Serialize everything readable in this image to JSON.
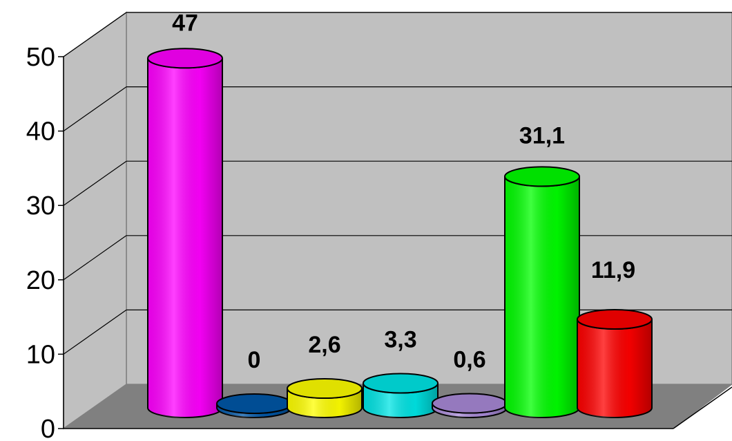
{
  "chart_data": {
    "type": "bar",
    "style": "3d-cylinder",
    "categories": [
      "",
      "",
      "",
      "",
      "",
      "",
      ""
    ],
    "values": [
      47,
      0,
      2.6,
      3.3,
      0.6,
      31.1,
      11.9
    ],
    "data_labels": [
      "47",
      "0",
      "2,6",
      "3,3",
      "0,6",
      "31,1",
      "11,9"
    ],
    "colors": [
      "#ff00ff",
      "#0057a8",
      "#ffff00",
      "#00e5e5",
      "#a98ad8",
      "#00ff00",
      "#ff0000"
    ],
    "yticks": [
      "0",
      "10",
      "20",
      "30",
      "40",
      "50"
    ],
    "ylim": [
      0,
      50
    ],
    "grid": true,
    "legend": "none",
    "title": "",
    "xlabel": "",
    "ylabel": ""
  }
}
